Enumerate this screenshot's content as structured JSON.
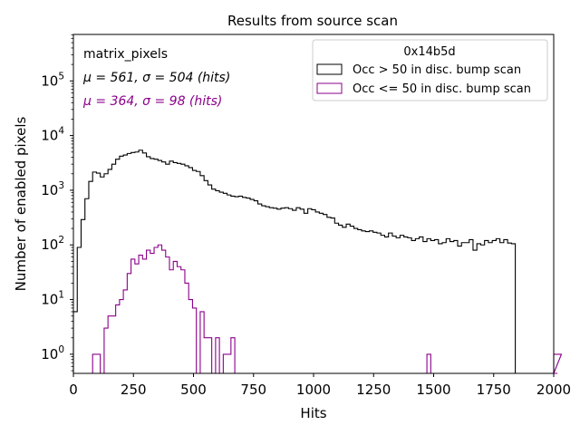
{
  "chart_data": {
    "type": "histogram",
    "title": "Results from source scan",
    "xlabel": "Hits",
    "ylabel": "Number of enabled pixels",
    "xlim": [
      0,
      2000
    ],
    "ylim_log10": [
      -0.35,
      5.85
    ],
    "yscale": "log",
    "x_ticks": [
      0,
      250,
      500,
      750,
      1000,
      1250,
      1500,
      1750,
      2000
    ],
    "x_tick_labels": [
      "0",
      "250",
      "500",
      "750",
      "1000",
      "1250",
      "1500",
      "1750",
      "2000"
    ],
    "y_ticks_exp": [
      0,
      1,
      2,
      3,
      4,
      5
    ],
    "y_tick_base": "10",
    "y_tick_exps": [
      "0",
      "1",
      "2",
      "3",
      "4",
      "5"
    ],
    "bin_width": 16,
    "annotations": {
      "name": "matrix_pixels",
      "stats1": "μ = 561, σ = 504 (hits)",
      "stats2": "μ = 364, σ = 98 (hits)"
    },
    "legend": {
      "title": "0x14b5d",
      "placement": "upper right",
      "entries": [
        "Occ > 50 in disc. bump scan",
        "Occ <= 50 in disc. bump scan"
      ]
    },
    "series": [
      {
        "name": "Occ > 50 in disc. bump scan",
        "color": "#000000",
        "x_start": 0,
        "values": [
          6,
          90,
          290,
          700,
          1450,
          2150,
          2050,
          1750,
          2000,
          2400,
          3000,
          3700,
          4200,
          4400,
          4700,
          4900,
          5000,
          5400,
          4800,
          4100,
          3800,
          3700,
          3500,
          3300,
          3000,
          3400,
          3200,
          3100,
          3000,
          2800,
          2600,
          2300,
          2200,
          1850,
          1500,
          1250,
          1050,
          980,
          920,
          880,
          820,
          780,
          760,
          780,
          740,
          720,
          680,
          640,
          560,
          520,
          500,
          480,
          470,
          450,
          470,
          480,
          460,
          430,
          480,
          450,
          380,
          460,
          440,
          400,
          380,
          360,
          320,
          310,
          250,
          230,
          210,
          240,
          220,
          200,
          190,
          180,
          175,
          180,
          170,
          165,
          150,
          140,
          165,
          145,
          135,
          150,
          140,
          135,
          120,
          130,
          140,
          115,
          130,
          120,
          125,
          105,
          110,
          130,
          115,
          120,
          95,
          110,
          110,
          125,
          80,
          105,
          100,
          120,
          110,
          120,
          130,
          110,
          125,
          108,
          105
        ]
      },
      {
        "name": "Occ <= 50 in disc. bump scan",
        "color": "#8b008b",
        "x_start": 80,
        "values": [
          1,
          1,
          0,
          3,
          5,
          5,
          8,
          10,
          15,
          30,
          55,
          45,
          65,
          55,
          80,
          70,
          90,
          100,
          80,
          60,
          35,
          50,
          40,
          35,
          20,
          10,
          7,
          0,
          6,
          2,
          2,
          0,
          2,
          0,
          1,
          1,
          2,
          0,
          0,
          0,
          0,
          0,
          0,
          0,
          0,
          0,
          0,
          0,
          0,
          0,
          0,
          0,
          0,
          0,
          0,
          0,
          0,
          0,
          0,
          0,
          0,
          0,
          0,
          0,
          0,
          0,
          0,
          0,
          0,
          0,
          0,
          0,
          0,
          0,
          0,
          0,
          0,
          0,
          0,
          0,
          0,
          0,
          0,
          0,
          0,
          0,
          0,
          1,
          0,
          0,
          0,
          0,
          0,
          0,
          0,
          0,
          0,
          0,
          0,
          0,
          0,
          0,
          0,
          0,
          0,
          0,
          0,
          0,
          0,
          0,
          0,
          0,
          0,
          0,
          0,
          0,
          0,
          0,
          0,
          0,
          0,
          0,
          1
        ]
      }
    ]
  }
}
